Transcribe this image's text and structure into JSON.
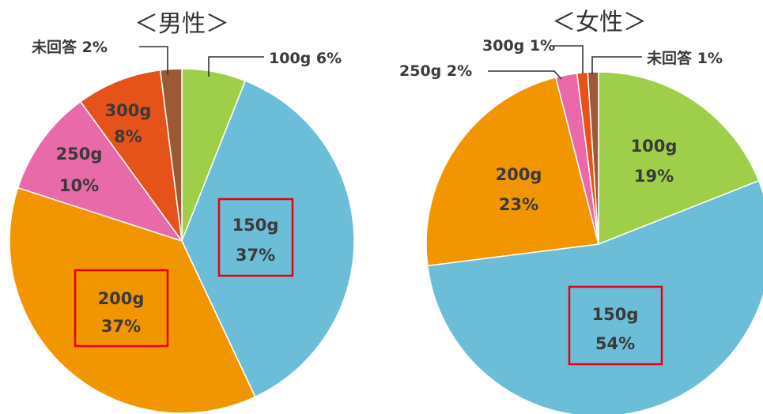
{
  "chart_data": [
    {
      "type": "pie",
      "title": "＜男性＞",
      "slices": [
        {
          "label": "100g",
          "pct_text": "6%",
          "value": 6,
          "color": "#9fcf4a"
        },
        {
          "label": "150g",
          "pct_text": "37%",
          "value": 37,
          "color": "#6cbdd8",
          "highlighted": true
        },
        {
          "label": "200g",
          "pct_text": "37%",
          "value": 37,
          "color": "#f29600",
          "highlighted": true
        },
        {
          "label": "250g",
          "pct_text": "10%",
          "value": 10,
          "color": "#e96aa8"
        },
        {
          "label": "300g",
          "pct_text": "8%",
          "value": 8,
          "color": "#e5531b"
        },
        {
          "label": "未回答",
          "pct_text": "2%",
          "value": 2,
          "color": "#9a5a36"
        }
      ]
    },
    {
      "type": "pie",
      "title": "＜女性＞",
      "slices": [
        {
          "label": "100g",
          "pct_text": "19%",
          "value": 19,
          "color": "#9fcf4a"
        },
        {
          "label": "150g",
          "pct_text": "54%",
          "value": 54,
          "color": "#6cbdd8",
          "highlighted": true
        },
        {
          "label": "200g",
          "pct_text": "23%",
          "value": 23,
          "color": "#f29600"
        },
        {
          "label": "250g",
          "pct_text": "2%",
          "value": 2,
          "color": "#e96aa8"
        },
        {
          "label": "300g",
          "pct_text": "1%",
          "value": 1,
          "color": "#e5531b"
        },
        {
          "label": "未回答",
          "pct_text": "1%",
          "value": 1,
          "color": "#9a5a36"
        }
      ]
    }
  ],
  "highlight_color": "#e60012"
}
